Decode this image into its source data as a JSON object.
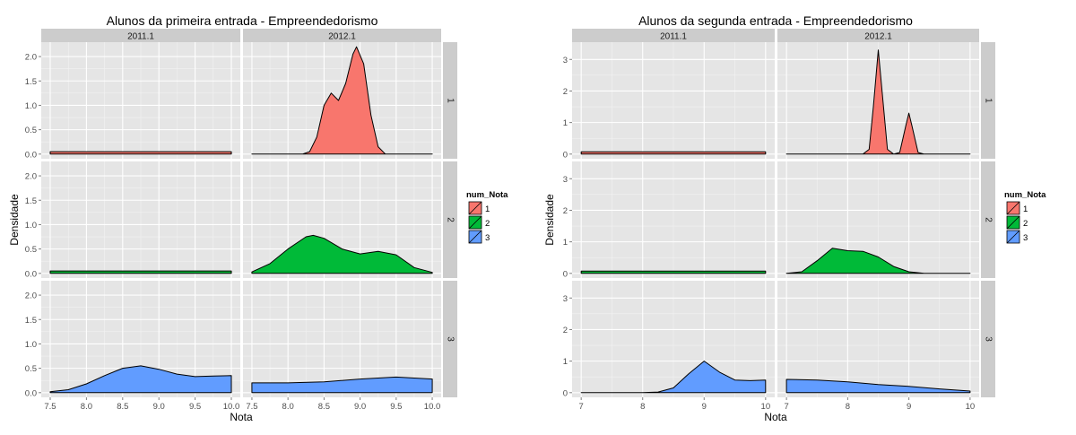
{
  "figures": [
    {
      "title": "Alunos da primeira entrada -  Empreendedorismo",
      "xlabel": "Nota",
      "ylabel": "Densidade",
      "col_strips": [
        "2011.1",
        "2012.1"
      ],
      "row_strips": [
        "1",
        "2",
        "3"
      ],
      "legend": {
        "title": "num_Nota",
        "items": [
          "1",
          "2",
          "3"
        ]
      },
      "x_ticks": [
        "7.5",
        "8.0",
        "8.5",
        "9.0",
        "9.5",
        "10.0"
      ],
      "y_ticks": [
        "0.0",
        "0.5",
        "1.0",
        "1.5",
        "2.0"
      ]
    },
    {
      "title": "Alunos da segunda entrada -  Empreendedorismo",
      "xlabel": "Nota",
      "ylabel": "Densidade",
      "col_strips": [
        "2011.1",
        "2012.1"
      ],
      "row_strips": [
        "1",
        "2",
        "3"
      ],
      "legend": {
        "title": "num_Nota",
        "items": [
          "1",
          "2",
          "3"
        ]
      },
      "x_ticks": [
        "7",
        "8",
        "9",
        "10"
      ],
      "y_ticks": [
        "0",
        "1",
        "2",
        "3"
      ]
    }
  ],
  "colors": {
    "1": "#F8766D",
    "2": "#00BA38",
    "3": "#619CFF",
    "panel": "#E5E5E5",
    "strip": "#CCCCCC",
    "grid": "#FFFFFF"
  },
  "chart_data": [
    {
      "type": "area",
      "title": "Alunos da primeira entrada -  Empreendedorismo",
      "xlabel": "Nota",
      "ylabel": "Densidade",
      "xlim": [
        7.5,
        10.0
      ],
      "ylim": [
        0,
        2.2
      ],
      "facets": {
        "2011.1|1": {
          "x": [
            7.5,
            10.0
          ],
          "y": [
            0.05,
            0.05
          ]
        },
        "2011.1|2": {
          "x": [
            7.5,
            10.0
          ],
          "y": [
            0.05,
            0.05
          ]
        },
        "2011.1|3": {
          "x": [
            7.5,
            7.75,
            8.0,
            8.25,
            8.5,
            8.75,
            9.0,
            9.25,
            9.5,
            9.75,
            10.0
          ],
          "y": [
            0.02,
            0.06,
            0.18,
            0.35,
            0.5,
            0.55,
            0.48,
            0.38,
            0.33,
            0.34,
            0.35
          ]
        },
        "2012.1|1": {
          "x": [
            7.5,
            8.2,
            8.3,
            8.4,
            8.5,
            8.6,
            8.7,
            8.8,
            8.9,
            8.95,
            9.05,
            9.15,
            9.25,
            9.35,
            10.0
          ],
          "y": [
            0,
            0,
            0.05,
            0.35,
            1.0,
            1.25,
            1.1,
            1.45,
            2.05,
            2.2,
            1.85,
            0.8,
            0.15,
            0,
            0
          ]
        },
        "2012.1|2": {
          "x": [
            7.5,
            7.75,
            8.0,
            8.25,
            8.35,
            8.5,
            8.75,
            9.0,
            9.25,
            9.5,
            9.75,
            10.0
          ],
          "y": [
            0.03,
            0.2,
            0.5,
            0.75,
            0.78,
            0.72,
            0.5,
            0.4,
            0.45,
            0.38,
            0.12,
            0.02
          ]
        },
        "2012.1|3": {
          "x": [
            7.5,
            8.0,
            8.5,
            9.0,
            9.5,
            10.0
          ],
          "y": [
            0.2,
            0.2,
            0.22,
            0.28,
            0.32,
            0.28
          ]
        }
      }
    },
    {
      "type": "area",
      "title": "Alunos da segunda entrada -  Empreendedorismo",
      "xlabel": "Nota",
      "ylabel": "Densidade",
      "xlim": [
        7,
        10
      ],
      "ylim": [
        0,
        3.4
      ],
      "facets": {
        "2011.1|1": {
          "x": [
            7,
            10
          ],
          "y": [
            0.07,
            0.07
          ]
        },
        "2011.1|2": {
          "x": [
            7,
            10
          ],
          "y": [
            0.07,
            0.07
          ]
        },
        "2011.1|3": {
          "x": [
            7,
            8,
            8.25,
            8.5,
            8.75,
            9.0,
            9.25,
            9.5,
            9.75,
            10
          ],
          "y": [
            0,
            0,
            0.02,
            0.15,
            0.6,
            1.0,
            0.65,
            0.4,
            0.38,
            0.4
          ]
        },
        "2012.1|1": {
          "x": [
            7,
            8.25,
            8.35,
            8.42,
            8.5,
            8.58,
            8.65,
            8.75,
            8.85,
            8.95,
            9.0,
            9.05,
            9.15,
            9.25,
            10
          ],
          "y": [
            0,
            0,
            0.15,
            1.5,
            3.3,
            1.6,
            0.15,
            0,
            0.05,
            0.9,
            1.3,
            0.9,
            0.05,
            0,
            0
          ]
        },
        "2012.1|2": {
          "x": [
            7,
            7.25,
            7.5,
            7.75,
            8.0,
            8.25,
            8.5,
            8.75,
            9.0,
            9.25,
            10
          ],
          "y": [
            0,
            0.05,
            0.4,
            0.8,
            0.72,
            0.7,
            0.52,
            0.22,
            0.05,
            0,
            0
          ]
        },
        "2012.1|3": {
          "x": [
            7,
            7.5,
            8.0,
            8.5,
            9.0,
            9.5,
            10
          ],
          "y": [
            0.42,
            0.4,
            0.34,
            0.26,
            0.2,
            0.12,
            0.05
          ]
        }
      }
    }
  ]
}
